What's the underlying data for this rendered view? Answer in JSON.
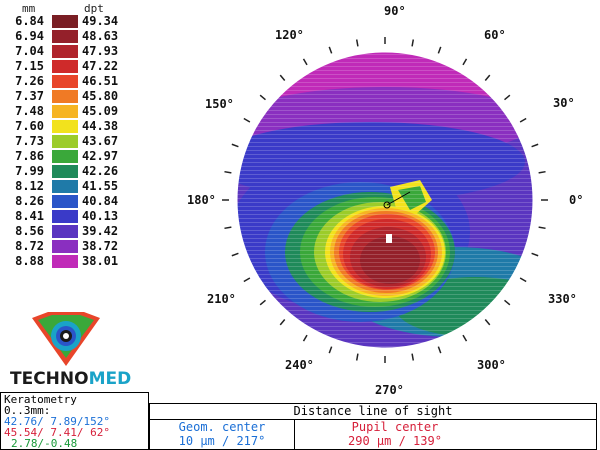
{
  "scale": {
    "mm_header": "mm",
    "dpt_header": "dpt",
    "rows": [
      {
        "mm": "6.84",
        "dpt": "49.34",
        "color": "#7a1e24"
      },
      {
        "mm": "6.94",
        "dpt": "48.63",
        "color": "#94202a"
      },
      {
        "mm": "7.04",
        "dpt": "47.93",
        "color": "#b0242c"
      },
      {
        "mm": "7.15",
        "dpt": "47.22",
        "color": "#cf2a2a"
      },
      {
        "mm": "7.26",
        "dpt": "46.51",
        "color": "#e8452a"
      },
      {
        "mm": "7.37",
        "dpt": "45.80",
        "color": "#f07a25"
      },
      {
        "mm": "7.48",
        "dpt": "45.09",
        "color": "#f6b423"
      },
      {
        "mm": "7.60",
        "dpt": "44.38",
        "color": "#f2e21d"
      },
      {
        "mm": "7.73",
        "dpt": "43.67",
        "color": "#9ccc2a"
      },
      {
        "mm": "7.86",
        "dpt": "42.97",
        "color": "#3aa83a"
      },
      {
        "mm": "7.99",
        "dpt": "42.26",
        "color": "#1f8a5a"
      },
      {
        "mm": "8.12",
        "dpt": "41.55",
        "color": "#1f7aa8"
      },
      {
        "mm": "8.26",
        "dpt": "40.84",
        "color": "#2a55c8"
      },
      {
        "mm": "8.41",
        "dpt": "40.13",
        "color": "#3a3ac8"
      },
      {
        "mm": "8.56",
        "dpt": "39.42",
        "color": "#5a35c0"
      },
      {
        "mm": "8.72",
        "dpt": "38.72",
        "color": "#8a2fc0"
      },
      {
        "mm": "8.88",
        "dpt": "38.01",
        "color": "#c02ab8"
      }
    ]
  },
  "axis_labels": {
    "a90": "90°",
    "a60": "60°",
    "a120": "120°",
    "a30": "30°",
    "a150": "150°",
    "a0": "0°",
    "a180": "180°",
    "a210": "210°",
    "a330": "330°",
    "a240": "240°",
    "a300": "300°",
    "a270": "270°"
  },
  "brand": {
    "part1": "TECHNO",
    "part2": "MED"
  },
  "keratometry": {
    "title": "Keratometry",
    "range": "0..3mm:",
    "line1": "42.76/ 7.89/152°",
    "line2": "45.54/ 7.41/ 62°",
    "line3": "2.78/-0.48",
    "color1": "#1b6fd6",
    "color2": "#d6203a",
    "color3": "#1a9a3a"
  },
  "distance": {
    "title": "Distance line of sight",
    "geom_label": "Geom. center",
    "geom_value": "10 µm / 217°",
    "pupil_label": "Pupil center",
    "pupil_value": "290 µm / 139°",
    "geom_color": "#1b6fd6",
    "pupil_color": "#d6203a"
  }
}
